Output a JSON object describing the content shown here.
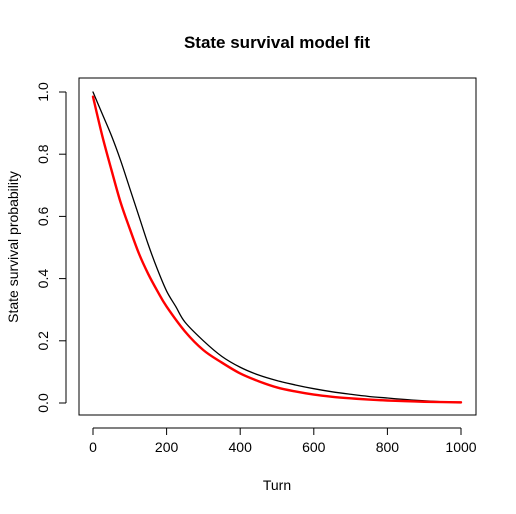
{
  "chart_data": {
    "type": "line",
    "title": "State survival model fit",
    "xlabel": "Turn",
    "ylabel": "State survival probability",
    "xlim": [
      0,
      1000
    ],
    "ylim": [
      0,
      1
    ],
    "x_ticks": [
      0,
      200,
      400,
      600,
      800,
      1000
    ],
    "y_ticks": [
      0.0,
      0.2,
      0.4,
      0.6,
      0.8,
      1.0
    ],
    "x_tick_labels": [
      "0",
      "200",
      "400",
      "600",
      "800",
      "1000"
    ],
    "y_tick_labels": [
      "0.0",
      "0.2",
      "0.4",
      "0.6",
      "0.8",
      "1.0"
    ],
    "grid": false,
    "legend": "none",
    "series": [
      {
        "color": "#000000",
        "x": [
          0,
          25,
          50,
          75,
          100,
          125,
          150,
          175,
          200,
          225,
          250,
          300,
          350,
          400,
          450,
          500,
          550,
          600,
          650,
          700,
          750,
          800,
          850,
          900,
          950,
          1000
        ],
        "y": [
          1.0,
          0.93,
          0.86,
          0.78,
          0.69,
          0.6,
          0.51,
          0.43,
          0.36,
          0.31,
          0.26,
          0.2,
          0.15,
          0.115,
          0.09,
          0.072,
          0.058,
          0.046,
          0.036,
          0.028,
          0.021,
          0.016,
          0.011,
          0.007,
          0.004,
          0.002
        ]
      },
      {
        "color": "#ff0000",
        "x": [
          0,
          25,
          50,
          75,
          100,
          125,
          150,
          175,
          200,
          250,
          300,
          350,
          400,
          450,
          500,
          550,
          600,
          650,
          700,
          750,
          800,
          850,
          900,
          950,
          1000
        ],
        "y": [
          0.985,
          0.86,
          0.75,
          0.645,
          0.56,
          0.48,
          0.415,
          0.36,
          0.31,
          0.23,
          0.17,
          0.13,
          0.095,
          0.07,
          0.05,
          0.037,
          0.027,
          0.02,
          0.015,
          0.011,
          0.008,
          0.006,
          0.004,
          0.003,
          0.002
        ]
      }
    ]
  }
}
